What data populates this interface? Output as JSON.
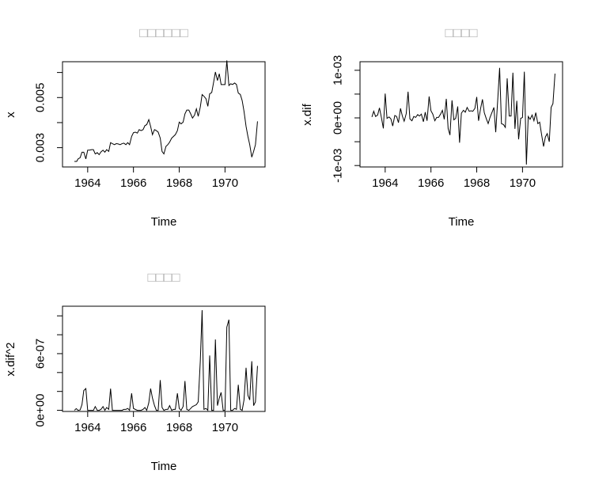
{
  "chart_data": [
    {
      "type": "line",
      "title": "□□□□□□",
      "xlabel": "Time",
      "ylabel": "x",
      "xlim": [
        1962.9,
        1971.75
      ],
      "ylim": [
        0.00223,
        0.00643
      ],
      "xticks": [
        1964,
        1966,
        1968,
        1970
      ],
      "xtick_labels": [
        "1964",
        "1966",
        "1968",
        "1970"
      ],
      "yticks": [
        0.003,
        0.004,
        0.005,
        0.006
      ],
      "ytick_labels": [
        "0.003",
        "",
        "0.005",
        ""
      ],
      "x": [
        1963.42,
        1963.52,
        1963.58,
        1963.67,
        1963.75,
        1963.83,
        1963.92,
        1964.0,
        1964.08,
        1964.17,
        1964.25,
        1964.33,
        1964.42,
        1964.5,
        1964.58,
        1964.67,
        1964.75,
        1964.83,
        1964.92,
        1965.0,
        1965.08,
        1965.17,
        1965.25,
        1965.33,
        1965.42,
        1965.5,
        1965.58,
        1965.67,
        1965.75,
        1965.83,
        1965.92,
        1966.0,
        1966.08,
        1966.17,
        1966.25,
        1966.33,
        1966.42,
        1966.5,
        1966.58,
        1966.67,
        1966.75,
        1966.83,
        1966.92,
        1967.0,
        1967.08,
        1967.17,
        1967.25,
        1967.33,
        1967.42,
        1967.5,
        1967.58,
        1967.67,
        1967.75,
        1967.83,
        1967.92,
        1968.0,
        1968.08,
        1968.17,
        1968.25,
        1968.33,
        1968.42,
        1968.5,
        1968.58,
        1968.67,
        1968.75,
        1968.83,
        1968.92,
        1969.0,
        1969.08,
        1969.17,
        1969.25,
        1969.33,
        1969.42,
        1969.5,
        1969.58,
        1969.67,
        1969.75,
        1969.83,
        1969.92,
        1970.0,
        1970.08,
        1970.17,
        1970.25,
        1970.33,
        1970.42,
        1970.5,
        1970.58,
        1970.67,
        1970.75,
        1970.83,
        1970.92,
        1971.0,
        1971.08,
        1971.17,
        1971.25,
        1971.33,
        1971.42
      ],
      "y": [
        0.00245,
        0.00245,
        0.00255,
        0.0026,
        0.00282,
        0.00282,
        0.00255,
        0.0029,
        0.0029,
        0.00292,
        0.00292,
        0.00275,
        0.0028,
        0.00272,
        0.00283,
        0.0029,
        0.00282,
        0.00292,
        0.00285,
        0.0032,
        0.00316,
        0.00312,
        0.00316,
        0.00315,
        0.00312,
        0.00316,
        0.00318,
        0.00312,
        0.0032,
        0.00312,
        0.00345,
        0.0036,
        0.00362,
        0.00358,
        0.00372,
        0.00368,
        0.00372,
        0.00388,
        0.00392,
        0.00412,
        0.00385,
        0.00352,
        0.00372,
        0.00368,
        0.00362,
        0.00338,
        0.00285,
        0.00275,
        0.00305,
        0.00312,
        0.00322,
        0.00338,
        0.00345,
        0.00352,
        0.00368,
        0.00402,
        0.00395,
        0.00402,
        0.00435,
        0.0045,
        0.0045,
        0.00435,
        0.00418,
        0.0043,
        0.00455,
        0.00425,
        0.00462,
        0.00512,
        0.00505,
        0.00495,
        0.00465,
        0.00515,
        0.0052,
        0.0056,
        0.00602,
        0.00568,
        0.00595,
        0.00552,
        0.00552,
        0.00552,
        0.00648,
        0.00548,
        0.00555,
        0.00552,
        0.00558,
        0.00552,
        0.00518,
        0.00512,
        0.00488,
        0.00445,
        0.00385,
        0.00345,
        0.00312,
        0.00262,
        0.00285,
        0.00312,
        0.00405
      ]
    },
    {
      "type": "line",
      "title": "□□□□",
      "xlabel": "Time",
      "ylabel": "x.dif",
      "xlim": [
        1962.9,
        1971.75
      ],
      "ylim": [
        -0.00103,
        0.00118
      ],
      "xticks": [
        1964,
        1966,
        1968,
        1970
      ],
      "xtick_labels": [
        "1964",
        "1966",
        "1968",
        "1970"
      ],
      "yticks": [
        -0.001,
        -0.0005,
        0,
        0.0005,
        0.001
      ],
      "ytick_labels": [
        "-1e-03",
        "",
        "0e+00",
        "",
        "1e-03"
      ],
      "x": [
        1963.42,
        1963.5,
        1963.58,
        1963.67,
        1963.75,
        1963.83,
        1963.92,
        1964.0,
        1964.08,
        1964.17,
        1964.25,
        1964.33,
        1964.42,
        1964.5,
        1964.58,
        1964.67,
        1964.75,
        1964.83,
        1964.92,
        1965.0,
        1965.08,
        1965.17,
        1965.25,
        1965.33,
        1965.42,
        1965.5,
        1965.58,
        1965.67,
        1965.75,
        1965.83,
        1965.92,
        1966.0,
        1966.08,
        1966.17,
        1966.25,
        1966.33,
        1966.42,
        1966.5,
        1966.58,
        1966.67,
        1966.75,
        1966.83,
        1966.92,
        1967.0,
        1967.08,
        1967.17,
        1967.25,
        1967.33,
        1967.42,
        1967.5,
        1967.58,
        1967.67,
        1967.75,
        1967.83,
        1967.92,
        1968.0,
        1968.08,
        1968.17,
        1968.25,
        1968.33,
        1968.42,
        1968.5,
        1968.58,
        1968.67,
        1968.75,
        1968.83,
        1968.92,
        1969.0,
        1969.08,
        1969.17,
        1969.25,
        1969.33,
        1969.42,
        1969.5,
        1969.58,
        1969.67,
        1969.75,
        1969.83,
        1969.92,
        1970.0,
        1970.08,
        1970.17,
        1970.25,
        1970.33,
        1970.42,
        1970.5,
        1970.58,
        1970.67,
        1970.75,
        1970.83,
        1970.92,
        1971.0,
        1971.08,
        1971.17,
        1971.25,
        1971.33,
        1971.42
      ],
      "y": [
        2e-05,
        0.00014,
        3e-05,
        6e-05,
        0.00021,
        2e-05,
        -0.00022,
        0.00051,
        -1e-05,
        2e-05,
        -2e-05,
        -0.00017,
        5e-05,
        3e-05,
        -0.0001,
        0.0002,
        4e-05,
        -7e-05,
        9e-05,
        0.00055,
        -2e-05,
        -6e-05,
        3e-05,
        1e-05,
        7e-05,
        4e-05,
        8e-05,
        -8e-05,
        0.00012,
        -6e-05,
        0.00045,
        0.00015,
        8e-05,
        -6e-05,
        1e-05,
        1e-05,
        8e-05,
        0.00016,
        -3e-05,
        0.0004,
        -0.00022,
        -0.00036,
        0.00037,
        -4e-05,
        -1e-05,
        0.00024,
        -0.00052,
        0.0001,
        0.00016,
        0.00012,
        0.00022,
        0.00014,
        0.00015,
        0.00014,
        0.0002,
        0.00044,
        -6e-05,
        0.0002,
        0.00039,
        0.00011,
        -2e-05,
        -0.00012,
        1e-05,
        0.00012,
        0.00022,
        -0.0003,
        0.0004,
        0.00105,
        -0.00012,
        -0.00014,
        -0.0002,
        0.00083,
        4e-05,
        4e-05,
        0.00095,
        -0.00023,
        0.00036,
        -0.00045,
        -1e-05,
        1e-05,
        0.00097,
        -0.00098,
        3e-05,
        -3e-05,
        6e-05,
        -6e-05,
        0.00011,
        -0.00012,
        -9e-05,
        -0.00034,
        -0.0006,
        -0.0004,
        -0.00033,
        -0.0005,
        0.00022,
        0.0003,
        0.00093
      ]
    },
    {
      "type": "line",
      "title": "□□□□",
      "xlabel": "Time",
      "ylabel": "x.dif^2",
      "xlim": [
        1962.9,
        1971.75
      ],
      "ylim": [
        -1.2e-08,
        1.102e-06
      ],
      "xticks": [
        1964,
        1966,
        1968,
        1970
      ],
      "xtick_labels": [
        "1964",
        "1966",
        "1968",
        "1970"
      ],
      "yticks": [
        0,
        2e-07,
        4e-07,
        6e-07,
        8e-07,
        1e-06
      ],
      "ytick_labels": [
        "0e+00",
        "",
        "",
        "6e-07",
        "",
        ""
      ],
      "x": [
        1963.42,
        1963.5,
        1963.58,
        1963.67,
        1963.75,
        1963.83,
        1963.92,
        1964.0,
        1964.08,
        1964.17,
        1964.25,
        1964.33,
        1964.42,
        1964.5,
        1964.58,
        1964.67,
        1964.75,
        1964.83,
        1964.92,
        1965.0,
        1965.08,
        1965.17,
        1965.25,
        1965.33,
        1965.42,
        1965.5,
        1965.58,
        1965.67,
        1965.75,
        1965.83,
        1965.92,
        1966.0,
        1966.08,
        1966.17,
        1966.25,
        1966.33,
        1966.42,
        1966.5,
        1966.58,
        1966.67,
        1966.75,
        1966.83,
        1966.92,
        1967.0,
        1967.08,
        1967.17,
        1967.25,
        1967.33,
        1967.42,
        1967.5,
        1967.58,
        1967.67,
        1967.75,
        1967.83,
        1967.92,
        1968.0,
        1968.08,
        1968.17,
        1968.25,
        1968.33,
        1968.42,
        1968.5,
        1968.58,
        1968.67,
        1968.75,
        1968.83,
        1968.92,
        1969.0,
        1969.08,
        1969.17,
        1969.25,
        1969.33,
        1969.42,
        1969.5,
        1969.58,
        1969.67,
        1969.75,
        1969.83,
        1969.92,
        1970.0,
        1970.08,
        1970.17,
        1970.25,
        1970.33,
        1970.42,
        1970.5,
        1970.58,
        1970.67,
        1970.75,
        1970.83,
        1970.92,
        1971.0,
        1971.08,
        1971.17,
        1971.25,
        1971.33,
        1971.42
      ],
      "y": [
        0.0,
        1.8e-08,
        0.0,
        4e-09,
        6e-08,
        2.1e-07,
        2.3e-07,
        0.0,
        0.0,
        0.0,
        0.0,
        4e-08,
        0.0,
        0.0,
        1e-08,
        4e-08,
        0.0,
        3e-08,
        1e-08,
        2.3e-07,
        0.0,
        0.0,
        0.0,
        0.0,
        0.0,
        0.0,
        1e-08,
        1e-08,
        2e-08,
        0.0,
        1.8e-07,
        2e-08,
        1e-08,
        0.0,
        0.0,
        0.0,
        1e-08,
        3e-08,
        0.0,
        8e-08,
        2.3e-07,
        1.3e-07,
        5e-08,
        0.0,
        0.0,
        3.2e-07,
        3e-08,
        0.0,
        1e-08,
        1e-08,
        5e-08,
        0.0,
        1e-08,
        1e-08,
        1.8e-07,
        2e-08,
        0.0,
        4e-08,
        3.1e-07,
        1e-08,
        0.0,
        2e-08,
        4e-08,
        5e-08,
        6e-08,
        9e-08,
        5.2e-07,
        1.06e-06,
        1e-08,
        2e-08,
        0.0,
        5.8e-07,
        0.0,
        0.0,
        7.5e-07,
        5e-08,
        1.3e-07,
        1.9e-07,
        0.0,
        0.0,
        8.8e-07,
        9.6e-07,
        0.0,
        0.0,
        2e-08,
        1e-08,
        2.7e-07,
        1e-08,
        0.0,
        1.1e-07,
        4.5e-07,
        1.6e-07,
        1.1e-07,
        5.2e-07,
        5e-08,
        9e-08,
        4.7e-07
      ]
    }
  ]
}
